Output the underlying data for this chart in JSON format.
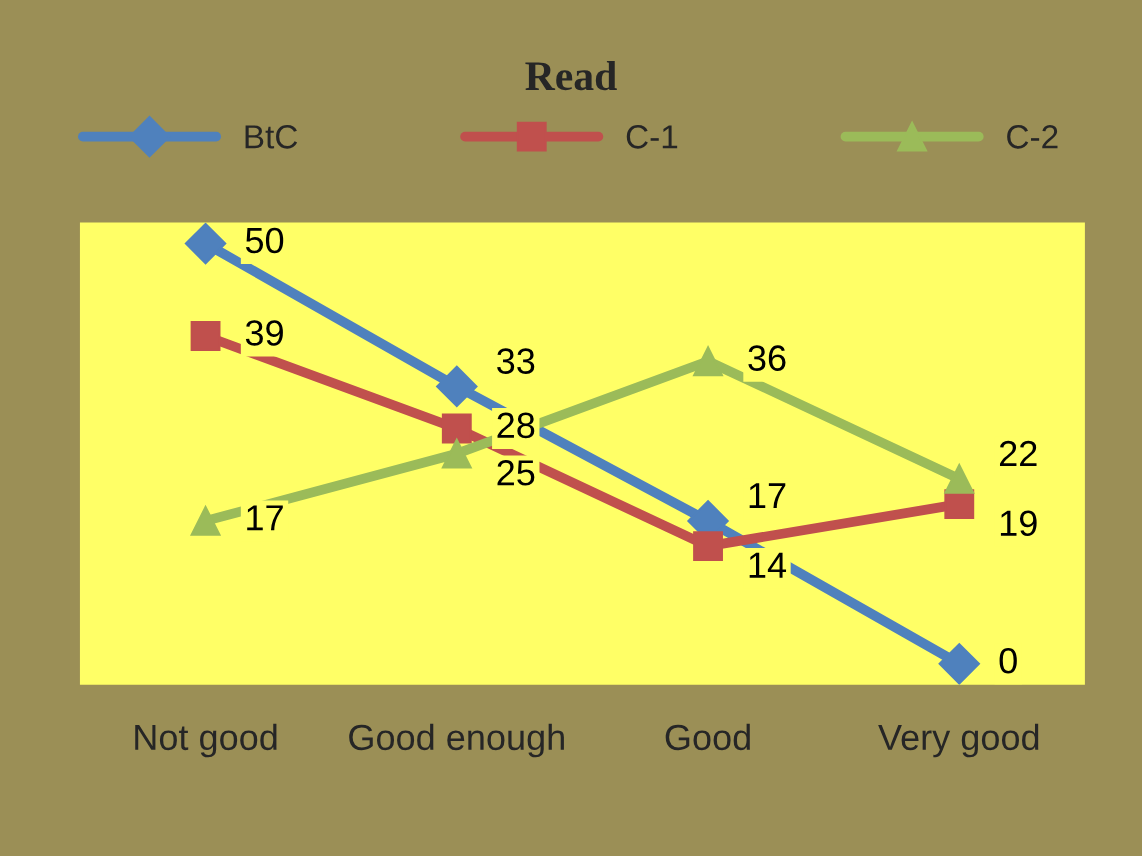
{
  "chart_data": {
    "type": "line",
    "title": "Read",
    "categories": [
      "Not good",
      "Good enough",
      "Good",
      "Very good"
    ],
    "series": [
      {
        "name": "BtC",
        "color": "#4f81bd",
        "marker": "diamond",
        "values": [
          50,
          33,
          17,
          0
        ]
      },
      {
        "name": "C-1",
        "color": "#c0504d",
        "marker": "square",
        "values": [
          39,
          28,
          14,
          19
        ]
      },
      {
        "name": "C-2",
        "color": "#9bbb59",
        "marker": "triangle",
        "values": [
          17,
          25,
          36,
          22
        ]
      }
    ],
    "tick_labels": "x",
    "data_labels": true,
    "legend": "top",
    "grid": false,
    "line_style": "solid"
  }
}
